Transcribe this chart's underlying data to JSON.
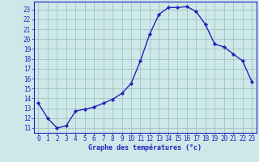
{
  "x": [
    0,
    1,
    2,
    3,
    4,
    5,
    6,
    7,
    8,
    9,
    10,
    11,
    12,
    13,
    14,
    15,
    16,
    17,
    18,
    19,
    20,
    21,
    22,
    23
  ],
  "y": [
    13.5,
    12.0,
    11.0,
    11.2,
    12.7,
    12.9,
    13.1,
    13.5,
    13.9,
    14.5,
    15.5,
    17.8,
    20.5,
    22.5,
    23.2,
    23.2,
    23.3,
    22.8,
    21.5,
    19.5,
    19.2,
    18.5,
    17.8,
    15.7
  ],
  "line_color": "#2222bb",
  "marker_color": "#2222bb",
  "bg_color": "#cce8e8",
  "grid_color": "#99bbbb",
  "axis_color": "#2222bb",
  "tick_label_color": "#2222bb",
  "xlabel": "Graphe des températures (°c)",
  "xlim": [
    -0.5,
    23.5
  ],
  "ylim": [
    10.5,
    23.8
  ],
  "yticks": [
    11,
    12,
    13,
    14,
    15,
    16,
    17,
    18,
    19,
    20,
    21,
    22,
    23
  ],
  "xticks": [
    0,
    1,
    2,
    3,
    4,
    5,
    6,
    7,
    8,
    9,
    10,
    11,
    12,
    13,
    14,
    15,
    16,
    17,
    18,
    19,
    20,
    21,
    22,
    23
  ],
  "xlabel_fontsize": 6.0,
  "tick_fontsize": 5.5
}
